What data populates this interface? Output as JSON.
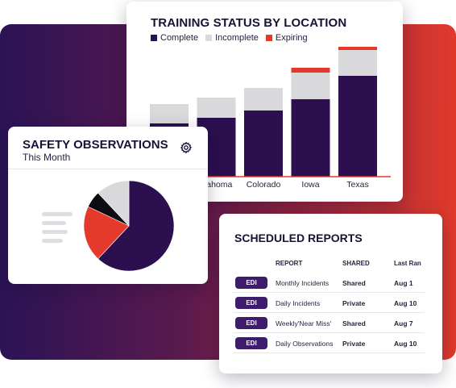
{
  "colors": {
    "complete": "#2b0f4f",
    "incomplete": "#d9d9dc",
    "expiring": "#e5392b",
    "pie_main": "#2b0f4f",
    "pie_red": "#e5392b",
    "pie_black": "#0d0a14",
    "pie_gray": "#d9d9dc"
  },
  "training": {
    "title": "TRAINING STATUS BY LOCATION",
    "legend": [
      "Complete",
      "Incomplete",
      "Expiring"
    ]
  },
  "chart_data": [
    {
      "type": "bar",
      "stacked": true,
      "title": "TRAINING STATUS BY LOCATION",
      "categories": [
        "",
        "Oklahoma",
        "Colorado",
        "Iowa",
        "Texas"
      ],
      "visible_labels": [
        "",
        "klahoma",
        "Colorado",
        "Iowa",
        "Texas"
      ],
      "series": [
        {
          "name": "Complete",
          "values": [
            66,
            73,
            82,
            96,
            125
          ]
        },
        {
          "name": "Incomplete",
          "values": [
            24,
            25,
            28,
            33,
            32
          ]
        },
        {
          "name": "Expiring",
          "values": [
            0,
            0,
            0,
            6,
            4
          ]
        }
      ],
      "ylim": [
        0,
        160
      ],
      "grid": false,
      "legend": "top-left"
    },
    {
      "type": "pie",
      "title": "SAFETY OBSERVATIONS",
      "subtitle": "This Month",
      "values": [
        62,
        20,
        6,
        12
      ]
    }
  ],
  "safety": {
    "title": "SAFETY OBSERVATIONS",
    "subtitle": "This Month"
  },
  "reports": {
    "title": "SCHEDULED REPORTS",
    "headers": {
      "report": "REPORT",
      "shared": "SHARED",
      "last_ran": "Last Ran"
    },
    "rows": [
      {
        "badge": "EDI",
        "report": "Monthly Incidents",
        "shared": "Shared",
        "last_ran": "Aug 1"
      },
      {
        "badge": "EDI",
        "report": "Daily Incidents",
        "shared": "Private",
        "last_ran": "Aug 10"
      },
      {
        "badge": "EDI",
        "report": "Weekly'Near Miss'",
        "shared": "Shared",
        "last_ran": "Aug 7"
      },
      {
        "badge": "EDI",
        "report": "Daily Observations",
        "shared": "Private",
        "last_ran": "Aug 10"
      }
    ]
  }
}
